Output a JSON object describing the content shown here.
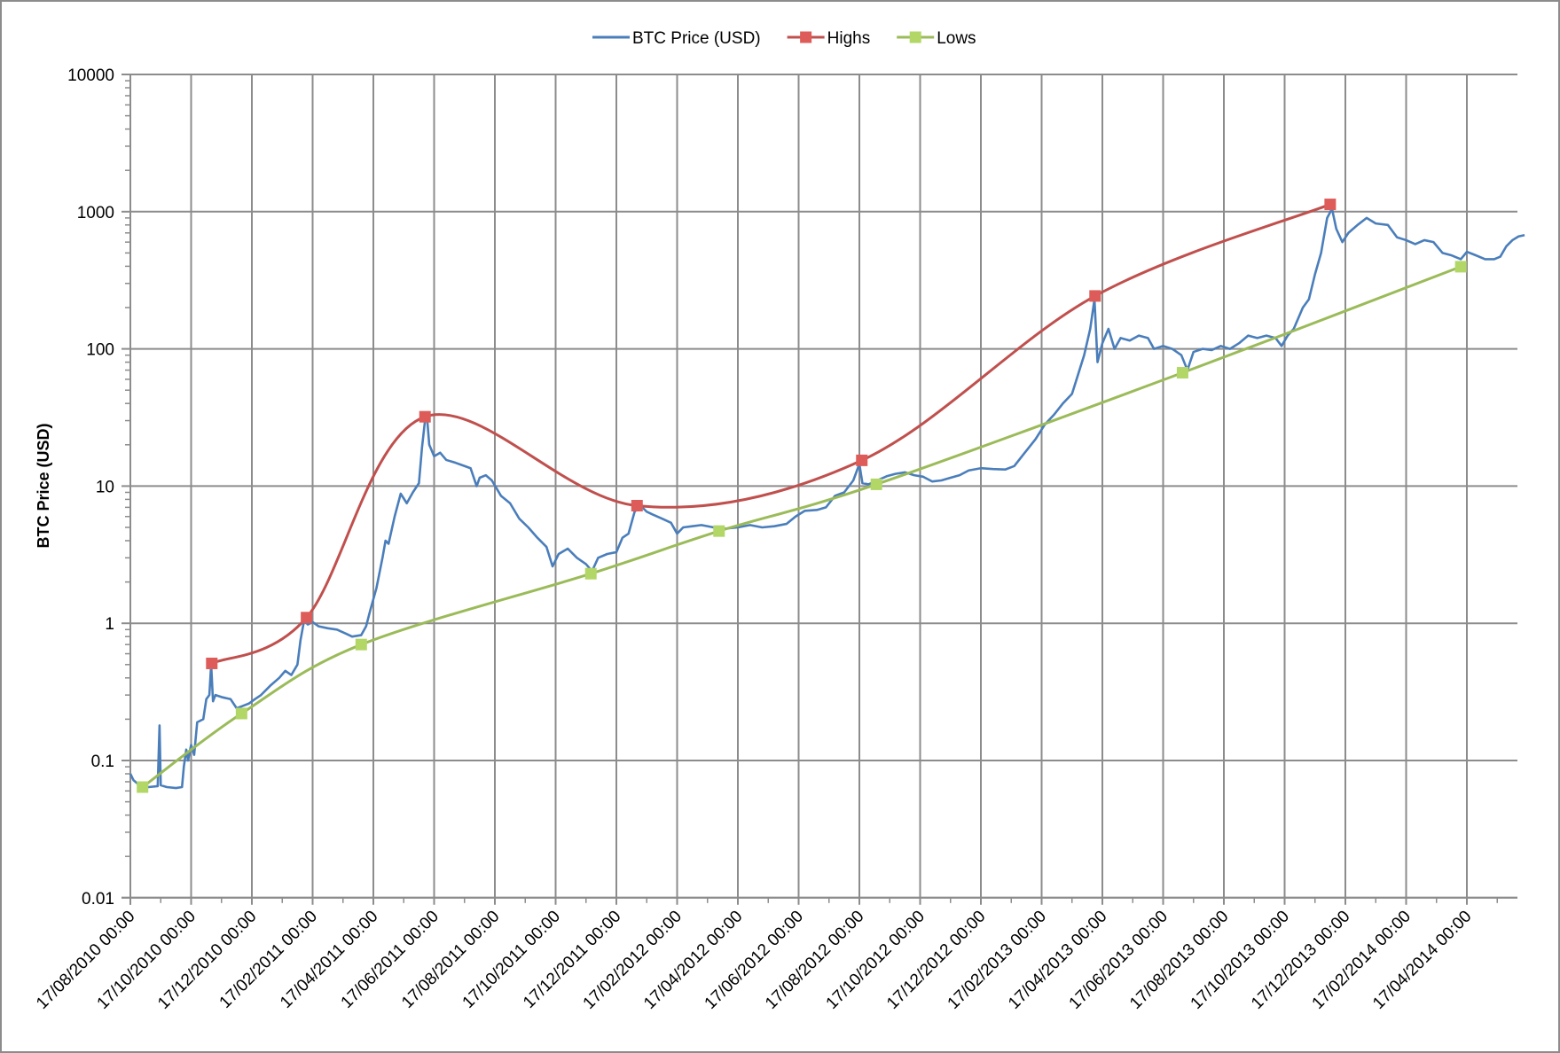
{
  "chart_data": {
    "type": "line",
    "title": "",
    "xlabel": "",
    "ylabel": "BTC Price (USD)",
    "yscale": "log",
    "ylim": [
      0.01,
      10000
    ],
    "y_ticks": [
      "10000",
      "1000",
      "100",
      "10",
      "1",
      "0.1",
      "0.01"
    ],
    "x_ticks": [
      "17/08/2010 00:00",
      "17/10/2010 00:00",
      "17/12/2010 00:00",
      "17/02/2011 00:00",
      "17/04/2011 00:00",
      "17/06/2011 00:00",
      "17/08/2011 00:00",
      "17/10/2011 00:00",
      "17/12/2011 00:00",
      "17/02/2012 00:00",
      "17/04/2012 00:00",
      "17/06/2012 00:00",
      "17/08/2012 00:00",
      "17/10/2012 00:00",
      "17/12/2012 00:00",
      "17/02/2013 00:00",
      "17/04/2013 00:00",
      "17/06/2013 00:00",
      "17/08/2013 00:00",
      "17/10/2013 00:00",
      "17/12/2013 00:00",
      "17/02/2014 00:00",
      "17/04/2014 00:00"
    ],
    "x_range_ticks": [
      0,
      23.35
    ],
    "grid": true,
    "legend_position": "top",
    "legend": [
      "BTC Price (USD)",
      "Highs",
      "Lows"
    ],
    "series": [
      {
        "name": "BTC Price (USD)",
        "color": "#4a7ebb",
        "marker": "none",
        "smooth": false,
        "points": [
          [
            0.0,
            0.08
          ],
          [
            0.05,
            0.072
          ],
          [
            0.15,
            0.066
          ],
          [
            0.3,
            0.064
          ],
          [
            0.45,
            0.065
          ],
          [
            0.48,
            0.18
          ],
          [
            0.5,
            0.066
          ],
          [
            0.6,
            0.064
          ],
          [
            0.75,
            0.063
          ],
          [
            0.85,
            0.064
          ],
          [
            0.88,
            0.09
          ],
          [
            0.92,
            0.12
          ],
          [
            0.95,
            0.1
          ],
          [
            1.0,
            0.13
          ],
          [
            1.05,
            0.11
          ],
          [
            1.1,
            0.19
          ],
          [
            1.2,
            0.2
          ],
          [
            1.25,
            0.28
          ],
          [
            1.3,
            0.3
          ],
          [
            1.33,
            0.5
          ],
          [
            1.36,
            0.27
          ],
          [
            1.4,
            0.3
          ],
          [
            1.5,
            0.29
          ],
          [
            1.65,
            0.28
          ],
          [
            1.75,
            0.24
          ],
          [
            1.85,
            0.25
          ],
          [
            1.95,
            0.26
          ],
          [
            2.05,
            0.28
          ],
          [
            2.15,
            0.3
          ],
          [
            2.3,
            0.35
          ],
          [
            2.45,
            0.4
          ],
          [
            2.55,
            0.45
          ],
          [
            2.65,
            0.42
          ],
          [
            2.75,
            0.5
          ],
          [
            2.8,
            0.75
          ],
          [
            2.86,
            1.05
          ],
          [
            2.92,
            0.98
          ],
          [
            3.0,
            1.02
          ],
          [
            3.1,
            0.95
          ],
          [
            3.25,
            0.92
          ],
          [
            3.4,
            0.9
          ],
          [
            3.55,
            0.84
          ],
          [
            3.65,
            0.8
          ],
          [
            3.8,
            0.82
          ],
          [
            3.88,
            0.95
          ],
          [
            3.95,
            1.25
          ],
          [
            4.05,
            1.8
          ],
          [
            4.15,
            3.0
          ],
          [
            4.2,
            4.0
          ],
          [
            4.25,
            3.8
          ],
          [
            4.35,
            6.0
          ],
          [
            4.45,
            8.8
          ],
          [
            4.55,
            7.5
          ],
          [
            4.65,
            9.0
          ],
          [
            4.75,
            10.5
          ],
          [
            4.8,
            19.0
          ],
          [
            4.85,
            30.0
          ],
          [
            4.88,
            33.0
          ],
          [
            4.92,
            20.0
          ],
          [
            5.0,
            16.5
          ],
          [
            5.1,
            17.5
          ],
          [
            5.2,
            15.5
          ],
          [
            5.35,
            14.8
          ],
          [
            5.5,
            14.0
          ],
          [
            5.6,
            13.5
          ],
          [
            5.7,
            10.0
          ],
          [
            5.75,
            11.5
          ],
          [
            5.85,
            12.0
          ],
          [
            5.95,
            11.0
          ],
          [
            6.1,
            8.5
          ],
          [
            6.25,
            7.5
          ],
          [
            6.4,
            5.8
          ],
          [
            6.55,
            5.0
          ],
          [
            6.7,
            4.2
          ],
          [
            6.85,
            3.6
          ],
          [
            6.95,
            2.6
          ],
          [
            7.05,
            3.2
          ],
          [
            7.2,
            3.5
          ],
          [
            7.35,
            3.0
          ],
          [
            7.5,
            2.7
          ],
          [
            7.6,
            2.4
          ],
          [
            7.7,
            3.0
          ],
          [
            7.85,
            3.2
          ],
          [
            8.0,
            3.3
          ],
          [
            8.1,
            4.2
          ],
          [
            8.2,
            4.5
          ],
          [
            8.3,
            6.5
          ],
          [
            8.4,
            7.2
          ],
          [
            8.5,
            6.5
          ],
          [
            8.6,
            6.2
          ],
          [
            8.75,
            5.8
          ],
          [
            8.9,
            5.4
          ],
          [
            9.0,
            4.5
          ],
          [
            9.1,
            5.0
          ],
          [
            9.25,
            5.1
          ],
          [
            9.4,
            5.2
          ],
          [
            9.6,
            5.0
          ],
          [
            9.8,
            4.9
          ],
          [
            10.0,
            5.0
          ],
          [
            10.2,
            5.2
          ],
          [
            10.4,
            5.0
          ],
          [
            10.6,
            5.1
          ],
          [
            10.8,
            5.3
          ],
          [
            10.95,
            6.0
          ],
          [
            11.1,
            6.6
          ],
          [
            11.3,
            6.7
          ],
          [
            11.45,
            7.0
          ],
          [
            11.6,
            8.5
          ],
          [
            11.75,
            9.0
          ],
          [
            11.9,
            11.0
          ],
          [
            12.0,
            14.5
          ],
          [
            12.05,
            10.5
          ],
          [
            12.15,
            10.3
          ],
          [
            12.3,
            11.0
          ],
          [
            12.45,
            11.8
          ],
          [
            12.6,
            12.3
          ],
          [
            12.75,
            12.6
          ],
          [
            12.9,
            12.0
          ],
          [
            13.05,
            11.7
          ],
          [
            13.2,
            10.8
          ],
          [
            13.35,
            11.0
          ],
          [
            13.5,
            11.5
          ],
          [
            13.65,
            12.0
          ],
          [
            13.8,
            13.0
          ],
          [
            14.0,
            13.5
          ],
          [
            14.2,
            13.3
          ],
          [
            14.4,
            13.2
          ],
          [
            14.55,
            14.0
          ],
          [
            14.7,
            17.0
          ],
          [
            14.9,
            22.0
          ],
          [
            15.05,
            28.0
          ],
          [
            15.2,
            33.0
          ],
          [
            15.35,
            40.0
          ],
          [
            15.5,
            47.0
          ],
          [
            15.6,
            65.0
          ],
          [
            15.7,
            90.0
          ],
          [
            15.8,
            140.0
          ],
          [
            15.87,
            230.0
          ],
          [
            15.92,
            80.0
          ],
          [
            16.0,
            110.0
          ],
          [
            16.1,
            140.0
          ],
          [
            16.2,
            100.0
          ],
          [
            16.3,
            120.0
          ],
          [
            16.45,
            115.0
          ],
          [
            16.6,
            125.0
          ],
          [
            16.75,
            120.0
          ],
          [
            16.85,
            100.0
          ],
          [
            17.0,
            105.0
          ],
          [
            17.15,
            100.0
          ],
          [
            17.3,
            90.0
          ],
          [
            17.4,
            70.0
          ],
          [
            17.5,
            95.0
          ],
          [
            17.65,
            100.0
          ],
          [
            17.8,
            98.0
          ],
          [
            17.95,
            105.0
          ],
          [
            18.1,
            100.0
          ],
          [
            18.25,
            110.0
          ],
          [
            18.4,
            125.0
          ],
          [
            18.55,
            120.0
          ],
          [
            18.7,
            125.0
          ],
          [
            18.85,
            120.0
          ],
          [
            18.95,
            105.0
          ],
          [
            19.05,
            125.0
          ],
          [
            19.15,
            140.0
          ],
          [
            19.3,
            200.0
          ],
          [
            19.4,
            230.0
          ],
          [
            19.5,
            350.0
          ],
          [
            19.6,
            500.0
          ],
          [
            19.7,
            900.0
          ],
          [
            19.78,
            1050.0
          ],
          [
            19.85,
            750.0
          ],
          [
            19.95,
            600.0
          ],
          [
            20.05,
            700.0
          ],
          [
            20.2,
            800.0
          ],
          [
            20.35,
            900.0
          ],
          [
            20.5,
            820.0
          ],
          [
            20.7,
            800.0
          ],
          [
            20.85,
            650.0
          ],
          [
            21.0,
            620.0
          ],
          [
            21.15,
            580.0
          ],
          [
            21.3,
            620.0
          ],
          [
            21.45,
            600.0
          ],
          [
            21.6,
            500.0
          ],
          [
            21.75,
            480.0
          ],
          [
            21.9,
            450.0
          ],
          [
            22.0,
            510.0
          ],
          [
            22.15,
            480.0
          ],
          [
            22.3,
            450.0
          ],
          [
            22.45,
            450.0
          ],
          [
            22.55,
            470.0
          ],
          [
            22.65,
            560.0
          ],
          [
            22.75,
            620.0
          ],
          [
            22.85,
            660.0
          ],
          [
            22.95,
            675.0
          ]
        ]
      },
      {
        "name": "Highs",
        "color": "#c0504d",
        "marker": "square",
        "smooth": true,
        "points": [
          [
            1.34,
            0.51
          ],
          [
            2.9,
            1.1
          ],
          [
            4.85,
            32.0
          ],
          [
            8.34,
            7.2
          ],
          [
            12.04,
            15.4
          ],
          [
            15.88,
            243.0
          ],
          [
            19.75,
            1130.0
          ]
        ]
      },
      {
        "name": "Lows",
        "color": "#9bbb59",
        "marker": "square",
        "smooth": true,
        "points": [
          [
            0.2,
            0.064
          ],
          [
            1.83,
            0.22
          ],
          [
            3.8,
            0.7
          ],
          [
            7.58,
            2.3
          ],
          [
            9.69,
            4.7
          ],
          [
            12.28,
            10.3
          ],
          [
            17.32,
            67.0
          ],
          [
            21.9,
            397.0
          ]
        ]
      }
    ]
  },
  "legend": {
    "items": [
      {
        "label": "BTC Price (USD)",
        "color": "#4a7ebb",
        "marker": "none"
      },
      {
        "label": "Highs",
        "color": "#c0504d",
        "marker": "square"
      },
      {
        "label": "Lows",
        "color": "#9bbb59",
        "marker": "square"
      }
    ]
  },
  "axes": {
    "y_title": "BTC Price (USD)"
  }
}
